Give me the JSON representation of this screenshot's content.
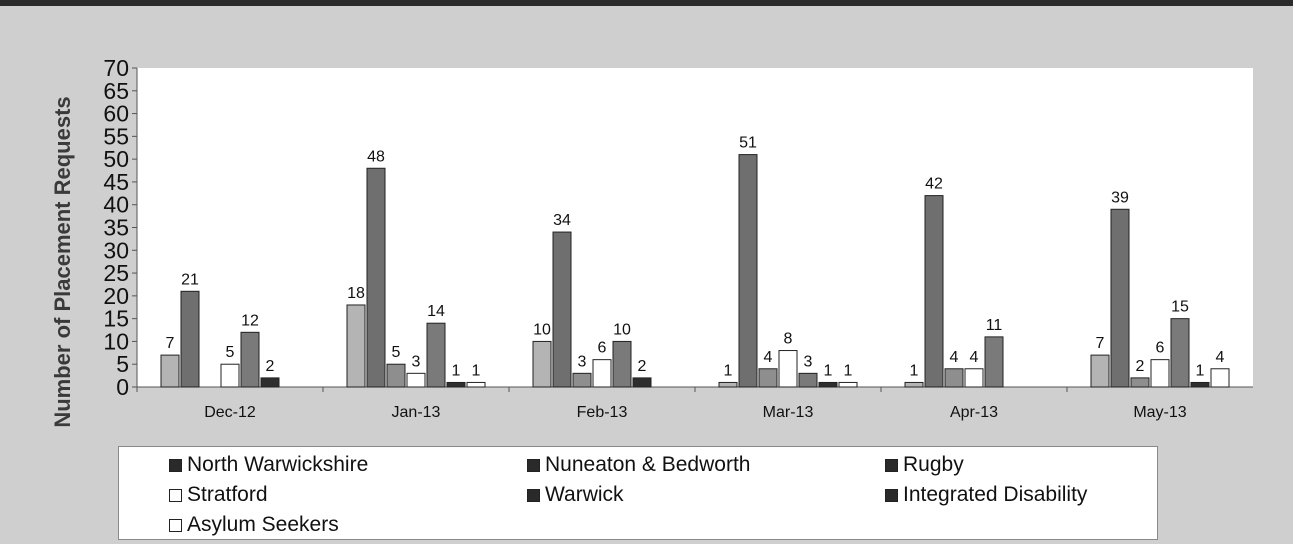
{
  "chart_data": {
    "type": "bar",
    "title": "",
    "xlabel": "",
    "ylabel": "Number of Placement Requests",
    "ylim": [
      0,
      70
    ],
    "yticks": [
      0,
      5,
      10,
      15,
      20,
      25,
      30,
      35,
      40,
      45,
      50,
      55,
      60,
      65,
      70
    ],
    "grid": false,
    "legend_position": "bottom",
    "categories": [
      "Dec-12",
      "Jan-13",
      "Feb-13",
      "Mar-13",
      "Apr-13",
      "May-13"
    ],
    "series": [
      {
        "name": "North Warwickshire",
        "color": "#b4b4b4",
        "legend_color": "#2a2a2a",
        "values": [
          7,
          18,
          10,
          1,
          1,
          7
        ]
      },
      {
        "name": "Nuneaton & Bedworth",
        "color": "#6f6f6f",
        "legend_color": "#2a2a2a",
        "values": [
          21,
          48,
          34,
          51,
          42,
          39
        ]
      },
      {
        "name": "Rugby",
        "color": "#8e8e8e",
        "legend_color": "#2a2a2a",
        "values": [
          null,
          5,
          3,
          4,
          4,
          2
        ]
      },
      {
        "name": "Stratford",
        "color": "#ffffff",
        "legend_color": "#ffffff",
        "values": [
          5,
          3,
          6,
          8,
          4,
          6
        ]
      },
      {
        "name": "Warwick",
        "color": "#7a7a7a",
        "legend_color": "#2a2a2a",
        "values": [
          12,
          14,
          10,
          3,
          11,
          15
        ]
      },
      {
        "name": "Integrated Disability",
        "color": "#2e2e2e",
        "legend_color": "#2a2a2a",
        "values": [
          2,
          1,
          2,
          1,
          null,
          1
        ]
      },
      {
        "name": "Asylum Seekers",
        "color": "#ffffff",
        "legend_color": "#ffffff",
        "values": [
          null,
          1,
          null,
          1,
          null,
          4
        ]
      }
    ]
  }
}
